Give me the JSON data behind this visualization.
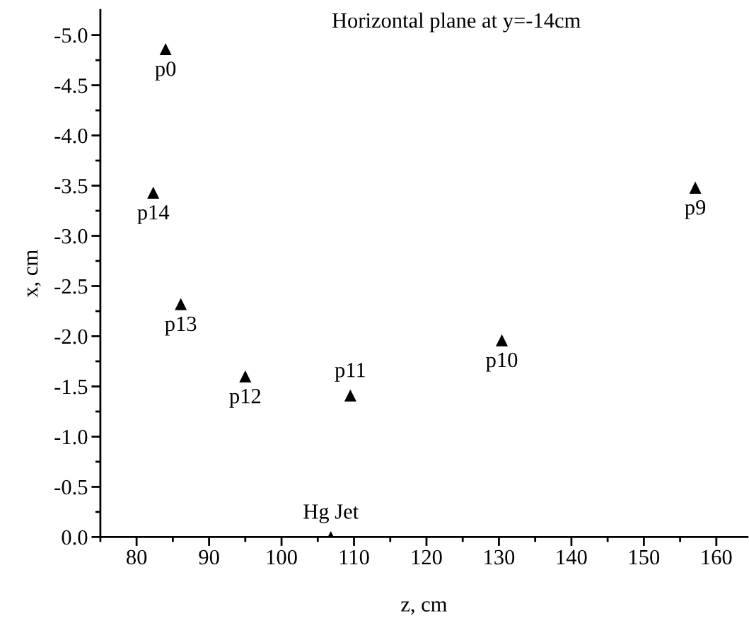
{
  "chart_data": {
    "type": "scatter",
    "title": "Horizontal plane at y=-14cm",
    "xlabel": "z, cm",
    "ylabel": "x, cm",
    "x": [
      84.0,
      82.3,
      86.1,
      95.0,
      109.5,
      106.8,
      130.4,
      157.1
    ],
    "series": [
      {
        "color": "#000000",
        "values": [
          -4.86,
          -3.43,
          -2.32,
          -1.6,
          -1.41,
          0.0,
          -1.96,
          -3.48
        ]
      }
    ],
    "marker": "triangle",
    "grid": false,
    "legend": false,
    "xlim": [
      75,
      164.3
    ],
    "ylim": [
      0,
      -5.25
    ],
    "xticks": [
      {
        "value": 75,
        "label": null
      },
      80,
      {
        "value": 85,
        "label": null
      },
      90,
      {
        "value": 95,
        "label": null
      },
      100,
      {
        "value": 105,
        "label": null
      },
      110,
      {
        "value": 115,
        "label": null
      },
      120,
      {
        "value": 125,
        "label": null
      },
      130,
      {
        "value": 135,
        "label": null
      },
      140,
      {
        "value": 145,
        "label": null
      },
      150,
      {
        "value": 155,
        "label": null
      },
      160
    ],
    "yticks": [
      {
        "value": 0,
        "label": "0.0"
      },
      {
        "value": -0.25,
        "label": null
      },
      {
        "value": -0.5,
        "label": "-0.5"
      },
      {
        "value": -0.75,
        "label": null
      },
      {
        "value": -1.0,
        "label": "-1.0"
      },
      {
        "value": -1.25,
        "label": null
      },
      {
        "value": -1.5,
        "label": "-1.5"
      },
      {
        "value": -1.75,
        "label": null
      },
      {
        "value": -2.0,
        "label": "-2.0"
      },
      {
        "value": -2.25,
        "label": null
      },
      {
        "value": -2.5,
        "label": "-2.5"
      },
      {
        "value": -2.75,
        "label": null
      },
      {
        "value": -3.0,
        "label": "-3.0"
      },
      {
        "value": -3.25,
        "label": null
      },
      {
        "value": -3.5,
        "label": "-3.5"
      },
      {
        "value": -3.75,
        "label": null
      },
      {
        "value": -4.0,
        "label": "-4.0"
      },
      {
        "value": -4.25,
        "label": null
      },
      {
        "value": -4.5,
        "label": "-4.5"
      },
      {
        "value": -4.75,
        "label": null
      },
      {
        "value": -5.0,
        "label": "-5.0"
      }
    ],
    "annotations": [
      {
        "text": "p0",
        "x": 84.0,
        "y": -4.86
      },
      {
        "text": "p14",
        "x": 82.3,
        "y": -3.43
      },
      {
        "text": "p13",
        "x": 86.1,
        "y": -2.32
      },
      {
        "text": "p12",
        "x": 95.0,
        "y": -1.6
      },
      {
        "text": "p11",
        "x": 109.5,
        "y": -1.41
      },
      {
        "text": "Hg Jet",
        "x": 106.8,
        "y": 0.0
      },
      {
        "text": "p10",
        "x": 130.4,
        "y": -1.96
      },
      {
        "text": "p9",
        "x": 157.1,
        "y": -3.48
      }
    ]
  }
}
